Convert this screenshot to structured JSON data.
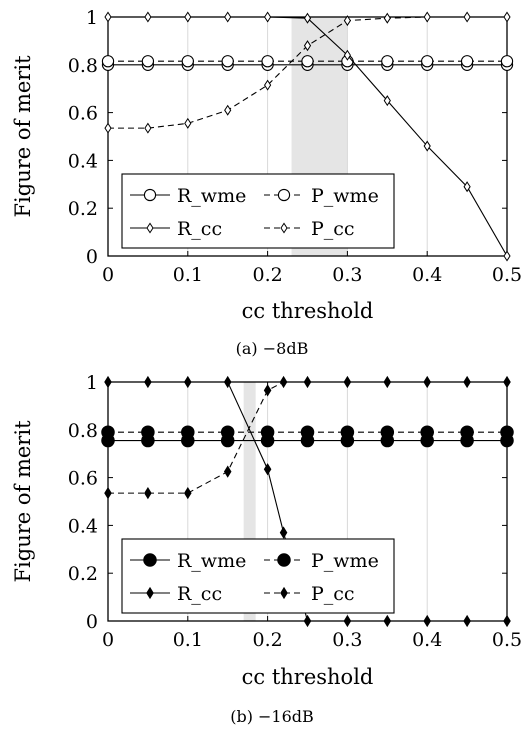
{
  "chart_data": [
    {
      "type": "line",
      "caption": "(a) −8dB",
      "xlabel": "cc threshold",
      "ylabel": "Figure of merit",
      "xlim": [
        0,
        0.5
      ],
      "ylim": [
        0,
        1
      ],
      "xticks": [
        "0",
        "0.1",
        "0.2",
        "0.3",
        "0.4",
        "0.5"
      ],
      "yticks": [
        "0",
        "0.2",
        "0.4",
        "0.6",
        "0.8",
        "1"
      ],
      "grid": "vertical",
      "legend": "bottom-center",
      "shaded_band": [
        0.23,
        0.3
      ],
      "series": [
        {
          "name": "R_wme",
          "marker": "open-circle",
          "dash": "solid",
          "x": [
            0,
            0.05,
            0.1,
            0.15,
            0.2,
            0.25,
            0.3,
            0.35,
            0.4,
            0.45,
            0.5
          ],
          "y": [
            0.8,
            0.8,
            0.8,
            0.8,
            0.8,
            0.8,
            0.8,
            0.8,
            0.8,
            0.8,
            0.8
          ]
        },
        {
          "name": "P_wme",
          "marker": "open-circle",
          "dash": "dashed",
          "x": [
            0,
            0.05,
            0.1,
            0.15,
            0.2,
            0.25,
            0.3,
            0.35,
            0.4,
            0.45,
            0.5
          ],
          "y": [
            0.815,
            0.815,
            0.815,
            0.815,
            0.815,
            0.815,
            0.815,
            0.815,
            0.815,
            0.815,
            0.815
          ]
        },
        {
          "name": "R_cc",
          "marker": "open-diamond",
          "dash": "solid",
          "x": [
            0,
            0.05,
            0.1,
            0.15,
            0.2,
            0.25,
            0.3,
            0.35,
            0.4,
            0.45,
            0.5
          ],
          "y": [
            1,
            1,
            1,
            1,
            1,
            0.995,
            0.84,
            0.65,
            0.46,
            0.29,
            0.0
          ]
        },
        {
          "name": "P_cc",
          "marker": "open-diamond",
          "dash": "dashed",
          "x": [
            0,
            0.05,
            0.1,
            0.15,
            0.2,
            0.25,
            0.3,
            0.35,
            0.4,
            0.45,
            0.5
          ],
          "y": [
            0.535,
            0.535,
            0.555,
            0.61,
            0.715,
            0.88,
            0.985,
            0.995,
            1,
            1,
            1
          ]
        }
      ]
    },
    {
      "type": "line",
      "caption": "(b) −16dB",
      "xlabel": "cc threshold",
      "ylabel": "Figure of merit",
      "xlim": [
        0,
        0.5
      ],
      "ylim": [
        0,
        1
      ],
      "xticks": [
        "0",
        "0.1",
        "0.2",
        "0.3",
        "0.4",
        "0.5"
      ],
      "yticks": [
        "0",
        "0.2",
        "0.4",
        "0.6",
        "0.8",
        "1"
      ],
      "grid": "vertical",
      "legend": "bottom-center",
      "shaded_band": [
        0.17,
        0.185
      ],
      "series": [
        {
          "name": "R_wme",
          "marker": "filled-circle",
          "dash": "solid",
          "x": [
            0,
            0.05,
            0.1,
            0.15,
            0.2,
            0.25,
            0.3,
            0.35,
            0.4,
            0.45,
            0.5
          ],
          "y": [
            0.755,
            0.755,
            0.755,
            0.755,
            0.755,
            0.755,
            0.755,
            0.755,
            0.755,
            0.755,
            0.755
          ]
        },
        {
          "name": "P_wme",
          "marker": "filled-circle",
          "dash": "dashed",
          "x": [
            0,
            0.05,
            0.1,
            0.15,
            0.2,
            0.25,
            0.3,
            0.35,
            0.4,
            0.45,
            0.5
          ],
          "y": [
            0.79,
            0.79,
            0.79,
            0.79,
            0.79,
            0.79,
            0.79,
            0.79,
            0.79,
            0.79,
            0.79
          ]
        },
        {
          "name": "R_cc",
          "marker": "filled-diamond",
          "dash": "solid",
          "x": [
            0,
            0.05,
            0.1,
            0.15,
            0.2,
            0.22,
            0.25,
            0.3,
            0.35,
            0.4,
            0.45,
            0.5
          ],
          "y": [
            1,
            1,
            1,
            1,
            0.635,
            0.37,
            0,
            0,
            0,
            0,
            0,
            0
          ]
        },
        {
          "name": "P_cc",
          "marker": "filled-diamond",
          "dash": "dashed",
          "x": [
            0,
            0.05,
            0.1,
            0.15,
            0.2,
            0.22,
            0.25,
            0.3,
            0.35,
            0.4,
            0.45,
            0.5
          ],
          "y": [
            0.535,
            0.535,
            0.535,
            0.625,
            0.965,
            1,
            1,
            1,
            1,
            1,
            1,
            1
          ]
        }
      ]
    }
  ]
}
